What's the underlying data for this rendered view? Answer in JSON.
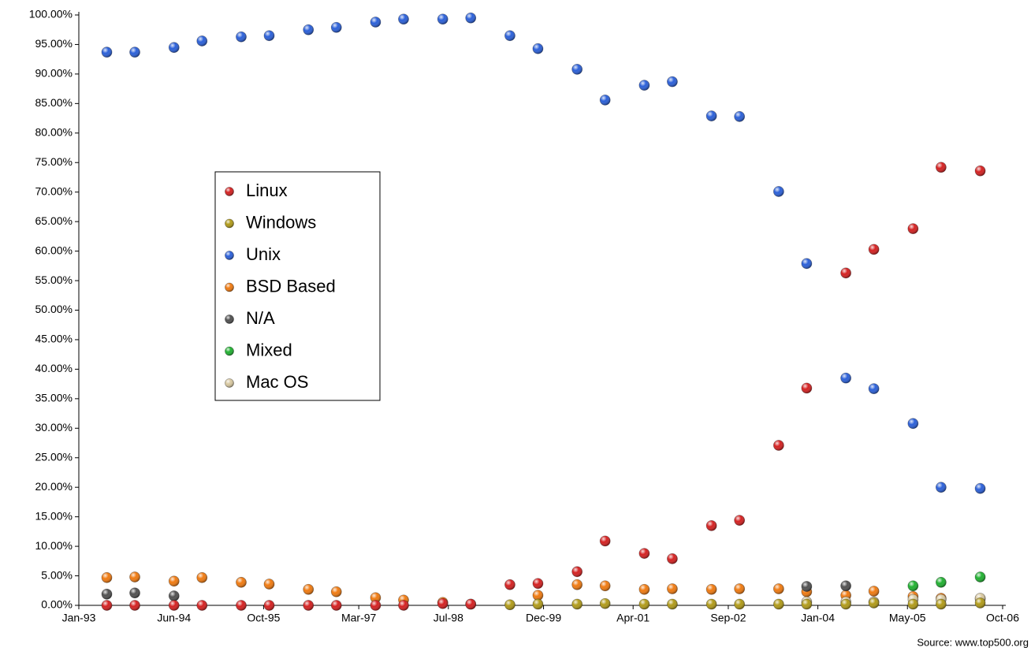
{
  "chart_data": {
    "type": "scatter",
    "note": "Source:  www.top500.org",
    "x": [
      "1993-06",
      "1993-11",
      "1994-06",
      "1994-11",
      "1995-06",
      "1995-11",
      "1996-06",
      "1996-11",
      "1997-06",
      "1997-11",
      "1998-06",
      "1998-11",
      "1999-06",
      "1999-11",
      "2000-06",
      "2000-11",
      "2001-06",
      "2001-11",
      "2002-06",
      "2002-11",
      "2003-06",
      "2003-11",
      "2004-06",
      "2004-11",
      "2005-06",
      "2005-11",
      "2006-06"
    ],
    "xlim": [
      "1993-01",
      "2006-10"
    ],
    "xticks": [
      {
        "value": "1993-01",
        "label": "Jan-93"
      },
      {
        "value": "1994-06",
        "label": "Jun-94"
      },
      {
        "value": "1995-10",
        "label": "Oct-95"
      },
      {
        "value": "1997-03",
        "label": "Mar-97"
      },
      {
        "value": "1998-07",
        "label": "Jul-98"
      },
      {
        "value": "1999-12",
        "label": "Dec-99"
      },
      {
        "value": "2001-04",
        "label": "Apr-01"
      },
      {
        "value": "2002-09",
        "label": "Sep-02"
      },
      {
        "value": "2004-01",
        "label": "Jan-04"
      },
      {
        "value": "2005-05",
        "label": "May-05"
      },
      {
        "value": "2006-10",
        "label": "Oct-06"
      }
    ],
    "ylim": [
      0,
      100
    ],
    "yticks": [
      {
        "value": 0,
        "label": "0.00%"
      },
      {
        "value": 5,
        "label": "5.00%"
      },
      {
        "value": 10,
        "label": "10.00%"
      },
      {
        "value": 15,
        "label": "15.00%"
      },
      {
        "value": 20,
        "label": "20.00%"
      },
      {
        "value": 25,
        "label": "25.00%"
      },
      {
        "value": 30,
        "label": "30.00%"
      },
      {
        "value": 35,
        "label": "35.00%"
      },
      {
        "value": 40,
        "label": "40.00%"
      },
      {
        "value": 45,
        "label": "45.00%"
      },
      {
        "value": 50,
        "label": "50.00%"
      },
      {
        "value": 55,
        "label": "55.00%"
      },
      {
        "value": 60,
        "label": "60.00%"
      },
      {
        "value": 65,
        "label": "65.00%"
      },
      {
        "value": 70,
        "label": "70.00%"
      },
      {
        "value": 75,
        "label": "75.00%"
      },
      {
        "value": 80,
        "label": "80.00%"
      },
      {
        "value": 85,
        "label": "85.00%"
      },
      {
        "value": 90,
        "label": "90.00%"
      },
      {
        "value": 95,
        "label": "95.00%"
      },
      {
        "value": 100,
        "label": "100.00%"
      }
    ],
    "legend": "left",
    "series": [
      {
        "name": "Linux",
        "color": "#d42020",
        "values": [
          0,
          0,
          0,
          0,
          0,
          0,
          0,
          0,
          0,
          0,
          0.3,
          0.2,
          3.5,
          3.7,
          5.7,
          10.9,
          8.8,
          7.9,
          13.5,
          14.4,
          27.1,
          36.8,
          56.3,
          60.3,
          63.8,
          74.2,
          73.6
        ]
      },
      {
        "name": "Windows",
        "color": "#b09a18",
        "values": [
          null,
          null,
          null,
          null,
          null,
          null,
          null,
          null,
          null,
          null,
          null,
          null,
          0.1,
          0.2,
          0.2,
          0.3,
          0.2,
          0.2,
          0.2,
          0.2,
          0.2,
          0.2,
          0.2,
          0.4,
          0.2,
          0.2,
          0.4
        ]
      },
      {
        "name": "Unix",
        "color": "#2a5fd8",
        "values": [
          93.7,
          93.7,
          94.5,
          95.6,
          96.3,
          96.5,
          97.5,
          97.9,
          98.8,
          99.3,
          99.3,
          99.5,
          96.5,
          94.3,
          90.8,
          85.6,
          88.1,
          88.7,
          82.9,
          82.8,
          70.1,
          57.9,
          38.5,
          36.7,
          30.8,
          20.0,
          19.8
        ]
      },
      {
        "name": "BSD Based",
        "color": "#f07a10",
        "values": [
          4.7,
          4.8,
          4.1,
          4.7,
          3.9,
          3.6,
          2.7,
          2.3,
          1.3,
          0.9,
          0.5,
          0.2,
          null,
          1.7,
          3.5,
          3.3,
          2.7,
          2.8,
          2.7,
          2.8,
          2.8,
          2.3,
          1.7,
          2.4,
          1.5,
          1.2,
          1.1
        ]
      },
      {
        "name": "N/A",
        "color": "#505050",
        "values": [
          1.9,
          2.1,
          1.6,
          null,
          null,
          null,
          null,
          null,
          null,
          null,
          null,
          null,
          null,
          null,
          null,
          null,
          null,
          null,
          null,
          null,
          null,
          3.2,
          3.3,
          null,
          null,
          null,
          null
        ]
      },
      {
        "name": "Mixed",
        "color": "#20b030",
        "values": [
          null,
          null,
          null,
          null,
          null,
          null,
          null,
          null,
          null,
          null,
          null,
          null,
          null,
          null,
          null,
          null,
          null,
          null,
          null,
          null,
          null,
          null,
          null,
          null,
          3.3,
          3.9,
          4.8
        ]
      },
      {
        "name": "Mac OS",
        "color": "#d8c8a0",
        "values": [
          null,
          null,
          null,
          null,
          null,
          null,
          null,
          null,
          null,
          null,
          null,
          null,
          null,
          null,
          null,
          null,
          null,
          null,
          null,
          null,
          null,
          0.6,
          0.6,
          0.6,
          1.0,
          1.0,
          1.2
        ]
      }
    ]
  }
}
